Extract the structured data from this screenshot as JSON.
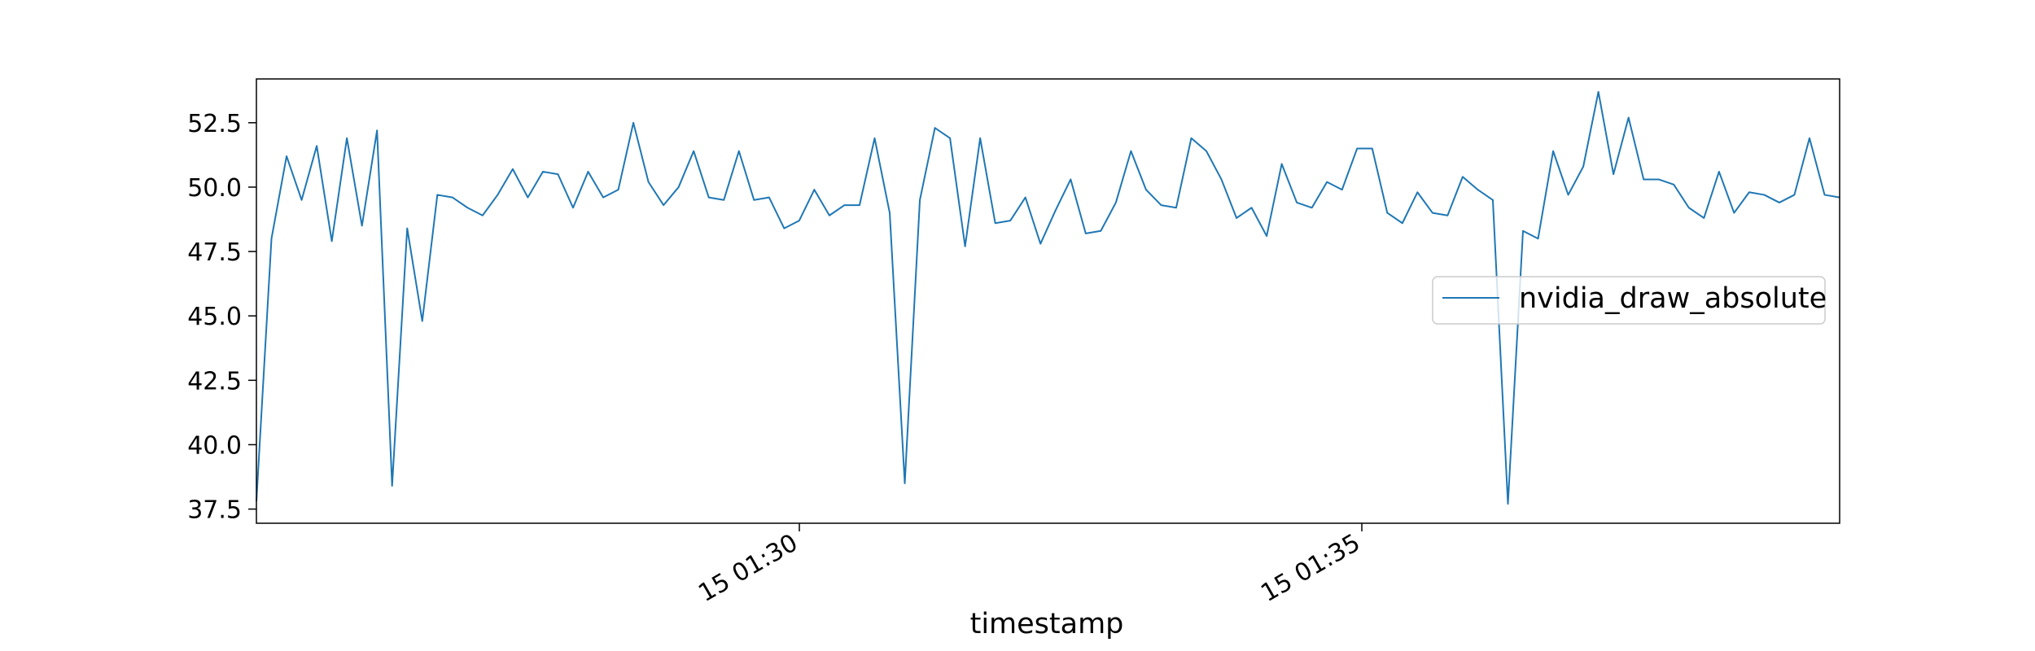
{
  "chart_data": {
    "type": "line",
    "title": "",
    "xlabel": "timestamp",
    "ylabel": "",
    "x_tick_labels": [
      "15 01:30",
      "15 01:35"
    ],
    "y_tick_labels": [
      "37.5",
      "40.0",
      "42.5",
      "45.0",
      "47.5",
      "50.0",
      "52.5"
    ],
    "y_ticks": [
      37.5,
      40.0,
      42.5,
      45.0,
      47.5,
      50.0,
      52.5
    ],
    "ylim": [
      36.95,
      54.2
    ],
    "legend_position": "center-right",
    "grid": false,
    "series": [
      {
        "name": "nvidia_draw_absolute",
        "color": "#1f77b4",
        "values": [
          37.8,
          48.0,
          51.2,
          49.5,
          51.6,
          47.9,
          51.9,
          48.5,
          52.2,
          38.4,
          48.4,
          44.8,
          49.7,
          49.6,
          49.2,
          48.9,
          49.7,
          50.7,
          49.6,
          50.6,
          50.5,
          49.2,
          50.6,
          49.6,
          49.9,
          52.5,
          50.2,
          49.3,
          50.0,
          51.4,
          49.6,
          49.5,
          51.4,
          49.5,
          49.6,
          48.4,
          48.7,
          49.9,
          48.9,
          49.3,
          49.3,
          51.9,
          49.0,
          38.5,
          49.5,
          52.3,
          51.9,
          47.7,
          51.9,
          48.6,
          48.7,
          49.6,
          47.8,
          49.1,
          50.3,
          48.2,
          48.3,
          49.4,
          51.4,
          49.9,
          49.3,
          49.2,
          51.9,
          51.4,
          50.3,
          48.8,
          49.2,
          48.1,
          50.9,
          49.4,
          49.2,
          50.2,
          49.9,
          51.5,
          51.5,
          49.0,
          48.6,
          49.8,
          49.0,
          48.9,
          50.4,
          49.9,
          49.5,
          37.7,
          48.3,
          48.0,
          51.4,
          49.7,
          50.8,
          53.7,
          50.5,
          52.7,
          50.3,
          50.3,
          50.1,
          49.2,
          48.8,
          50.6,
          49.0,
          49.8,
          49.7,
          49.4,
          49.7,
          51.9,
          49.7,
          49.6
        ]
      }
    ]
  }
}
